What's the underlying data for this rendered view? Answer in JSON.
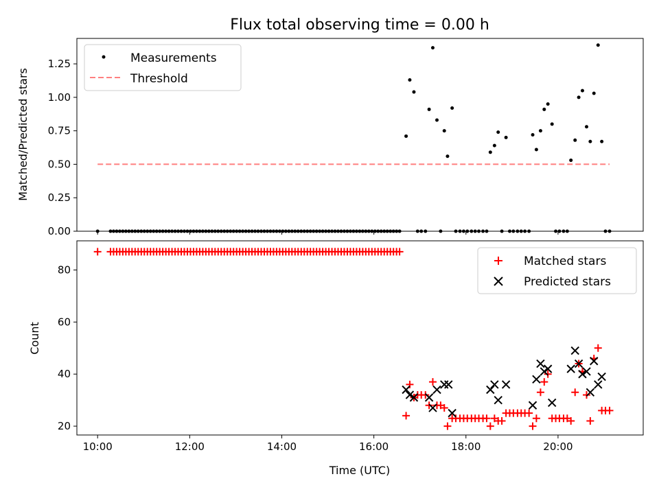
{
  "chart_data": [
    {
      "type": "scatter",
      "title": "Flux total observing time = 0.00 h",
      "xlabel": "",
      "ylabel": "Matched/Predicted stars",
      "x_unit": "hours UTC",
      "xlim": [
        9.55,
        21.85
      ],
      "ylim": [
        0.0,
        1.44
      ],
      "y_ticks": [
        0.0,
        0.25,
        0.5,
        0.75,
        1.0,
        1.25
      ],
      "y_tick_labels": [
        "0.00",
        "0.25",
        "0.50",
        "0.75",
        "1.00",
        "1.25"
      ],
      "x_ticks": [
        10,
        12,
        14,
        16,
        18,
        20
      ],
      "x_tick_labels": [
        "",
        "",
        "",
        "",
        "",
        ""
      ],
      "legend_position": "top-left",
      "series": [
        {
          "name": "Measurements",
          "marker": "dot",
          "color": "#000000",
          "zero_run": {
            "start": 10.28,
            "end": 16.62,
            "step": 0.0668
          },
          "points": [
            [
              10.0,
              0.0
            ],
            [
              16.7,
              0.71
            ],
            [
              16.78,
              1.13
            ],
            [
              16.87,
              1.04
            ],
            [
              16.95,
              0.0
            ],
            [
              17.03,
              0.0
            ],
            [
              17.12,
              0.0
            ],
            [
              17.2,
              0.91
            ],
            [
              17.28,
              1.37
            ],
            [
              17.37,
              0.83
            ],
            [
              17.45,
              0.0
            ],
            [
              17.53,
              0.75
            ],
            [
              17.6,
              0.56
            ],
            [
              17.7,
              0.92
            ],
            [
              17.78,
              0.0
            ],
            [
              17.87,
              0.0
            ],
            [
              17.95,
              0.0
            ],
            [
              18.03,
              0.0
            ],
            [
              18.12,
              0.0
            ],
            [
              18.2,
              0.0
            ],
            [
              18.28,
              0.0
            ],
            [
              18.37,
              0.0
            ],
            [
              18.45,
              0.0
            ],
            [
              18.53,
              0.59
            ],
            [
              18.62,
              0.64
            ],
            [
              18.7,
              0.74
            ],
            [
              18.78,
              0.0
            ],
            [
              18.87,
              0.7
            ],
            [
              18.95,
              0.0
            ],
            [
              19.03,
              0.0
            ],
            [
              19.12,
              0.0
            ],
            [
              19.2,
              0.0
            ],
            [
              19.28,
              0.0
            ],
            [
              19.37,
              0.0
            ],
            [
              19.45,
              0.72
            ],
            [
              19.53,
              0.61
            ],
            [
              19.62,
              0.75
            ],
            [
              19.7,
              0.91
            ],
            [
              19.78,
              0.95
            ],
            [
              19.87,
              0.8
            ],
            [
              19.95,
              0.0
            ],
            [
              20.03,
              0.0
            ],
            [
              20.12,
              0.0
            ],
            [
              20.2,
              0.0
            ],
            [
              20.28,
              0.53
            ],
            [
              20.37,
              0.68
            ],
            [
              20.45,
              1.0
            ],
            [
              20.53,
              1.05
            ],
            [
              20.62,
              0.78
            ],
            [
              20.7,
              0.67
            ],
            [
              20.78,
              1.03
            ],
            [
              20.87,
              1.39
            ],
            [
              20.95,
              0.67
            ],
            [
              21.03,
              0.0
            ],
            [
              21.12,
              0.0
            ]
          ]
        },
        {
          "name": "Threshold",
          "type": "line",
          "style": "dashed",
          "color": "#ff7f7f",
          "x": [
            10.0,
            21.12
          ],
          "values": [
            0.5,
            0.5
          ]
        }
      ]
    },
    {
      "type": "scatter",
      "title": "",
      "xlabel": "Time (UTC)",
      "ylabel": "Count",
      "x_unit": "hours UTC",
      "xlim": [
        9.55,
        21.85
      ],
      "ylim": [
        16.6,
        91.2
      ],
      "y_ticks": [
        20,
        40,
        60,
        80
      ],
      "y_tick_labels": [
        "20",
        "40",
        "60",
        "80"
      ],
      "x_ticks": [
        10,
        12,
        14,
        16,
        18,
        20
      ],
      "x_tick_labels": [
        "10:00",
        "12:00",
        "14:00",
        "16:00",
        "18:00",
        "20:00"
      ],
      "legend_position": "top-right",
      "series": [
        {
          "name": "Matched stars",
          "marker": "plus",
          "color": "#ff0000",
          "const_run": {
            "start": 10.28,
            "end": 16.62,
            "step": 0.0668,
            "value": 87
          },
          "points": [
            [
              10.0,
              87
            ],
            [
              16.7,
              24
            ],
            [
              16.78,
              36
            ],
            [
              16.87,
              31
            ],
            [
              16.95,
              32
            ],
            [
              17.03,
              32
            ],
            [
              17.12,
              32
            ],
            [
              17.2,
              28
            ],
            [
              17.28,
              37
            ],
            [
              17.37,
              28
            ],
            [
              17.45,
              28
            ],
            [
              17.53,
              27
            ],
            [
              17.6,
              20
            ],
            [
              17.7,
              23
            ],
            [
              17.78,
              23
            ],
            [
              17.87,
              23
            ],
            [
              17.95,
              23
            ],
            [
              18.03,
              23
            ],
            [
              18.12,
              23
            ],
            [
              18.2,
              23
            ],
            [
              18.28,
              23
            ],
            [
              18.37,
              23
            ],
            [
              18.45,
              23
            ],
            [
              18.53,
              20
            ],
            [
              18.62,
              23
            ],
            [
              18.7,
              22
            ],
            [
              18.78,
              22
            ],
            [
              18.87,
              25
            ],
            [
              18.95,
              25
            ],
            [
              19.03,
              25
            ],
            [
              19.12,
              25
            ],
            [
              19.2,
              25
            ],
            [
              19.28,
              25
            ],
            [
              19.37,
              25
            ],
            [
              19.45,
              20
            ],
            [
              19.53,
              23
            ],
            [
              19.62,
              33
            ],
            [
              19.7,
              37
            ],
            [
              19.78,
              40
            ],
            [
              19.87,
              23
            ],
            [
              19.95,
              23
            ],
            [
              20.03,
              23
            ],
            [
              20.12,
              23
            ],
            [
              20.2,
              23
            ],
            [
              20.28,
              22
            ],
            [
              20.37,
              33
            ],
            [
              20.45,
              44
            ],
            [
              20.53,
              41
            ],
            [
              20.62,
              32
            ],
            [
              20.7,
              22
            ],
            [
              20.78,
              46
            ],
            [
              20.87,
              50
            ],
            [
              20.95,
              26
            ],
            [
              21.03,
              26
            ],
            [
              21.12,
              26
            ]
          ]
        },
        {
          "name": "Predicted stars",
          "marker": "x",
          "color": "#000000",
          "points": [
            [
              16.7,
              34
            ],
            [
              16.78,
              32
            ],
            [
              16.87,
              31
            ],
            [
              17.2,
              31
            ],
            [
              17.28,
              27
            ],
            [
              17.37,
              34
            ],
            [
              17.53,
              36
            ],
            [
              17.62,
              36
            ],
            [
              17.7,
              25
            ],
            [
              18.53,
              34
            ],
            [
              18.62,
              36
            ],
            [
              18.7,
              30
            ],
            [
              18.87,
              36
            ],
            [
              19.45,
              28
            ],
            [
              19.53,
              38
            ],
            [
              19.62,
              44
            ],
            [
              19.7,
              41
            ],
            [
              19.78,
              42
            ],
            [
              19.87,
              29
            ],
            [
              20.28,
              42
            ],
            [
              20.37,
              49
            ],
            [
              20.45,
              44
            ],
            [
              20.53,
              40
            ],
            [
              20.62,
              41
            ],
            [
              20.7,
              33
            ],
            [
              20.78,
              45
            ],
            [
              20.87,
              36
            ],
            [
              20.95,
              39
            ]
          ]
        }
      ]
    }
  ]
}
